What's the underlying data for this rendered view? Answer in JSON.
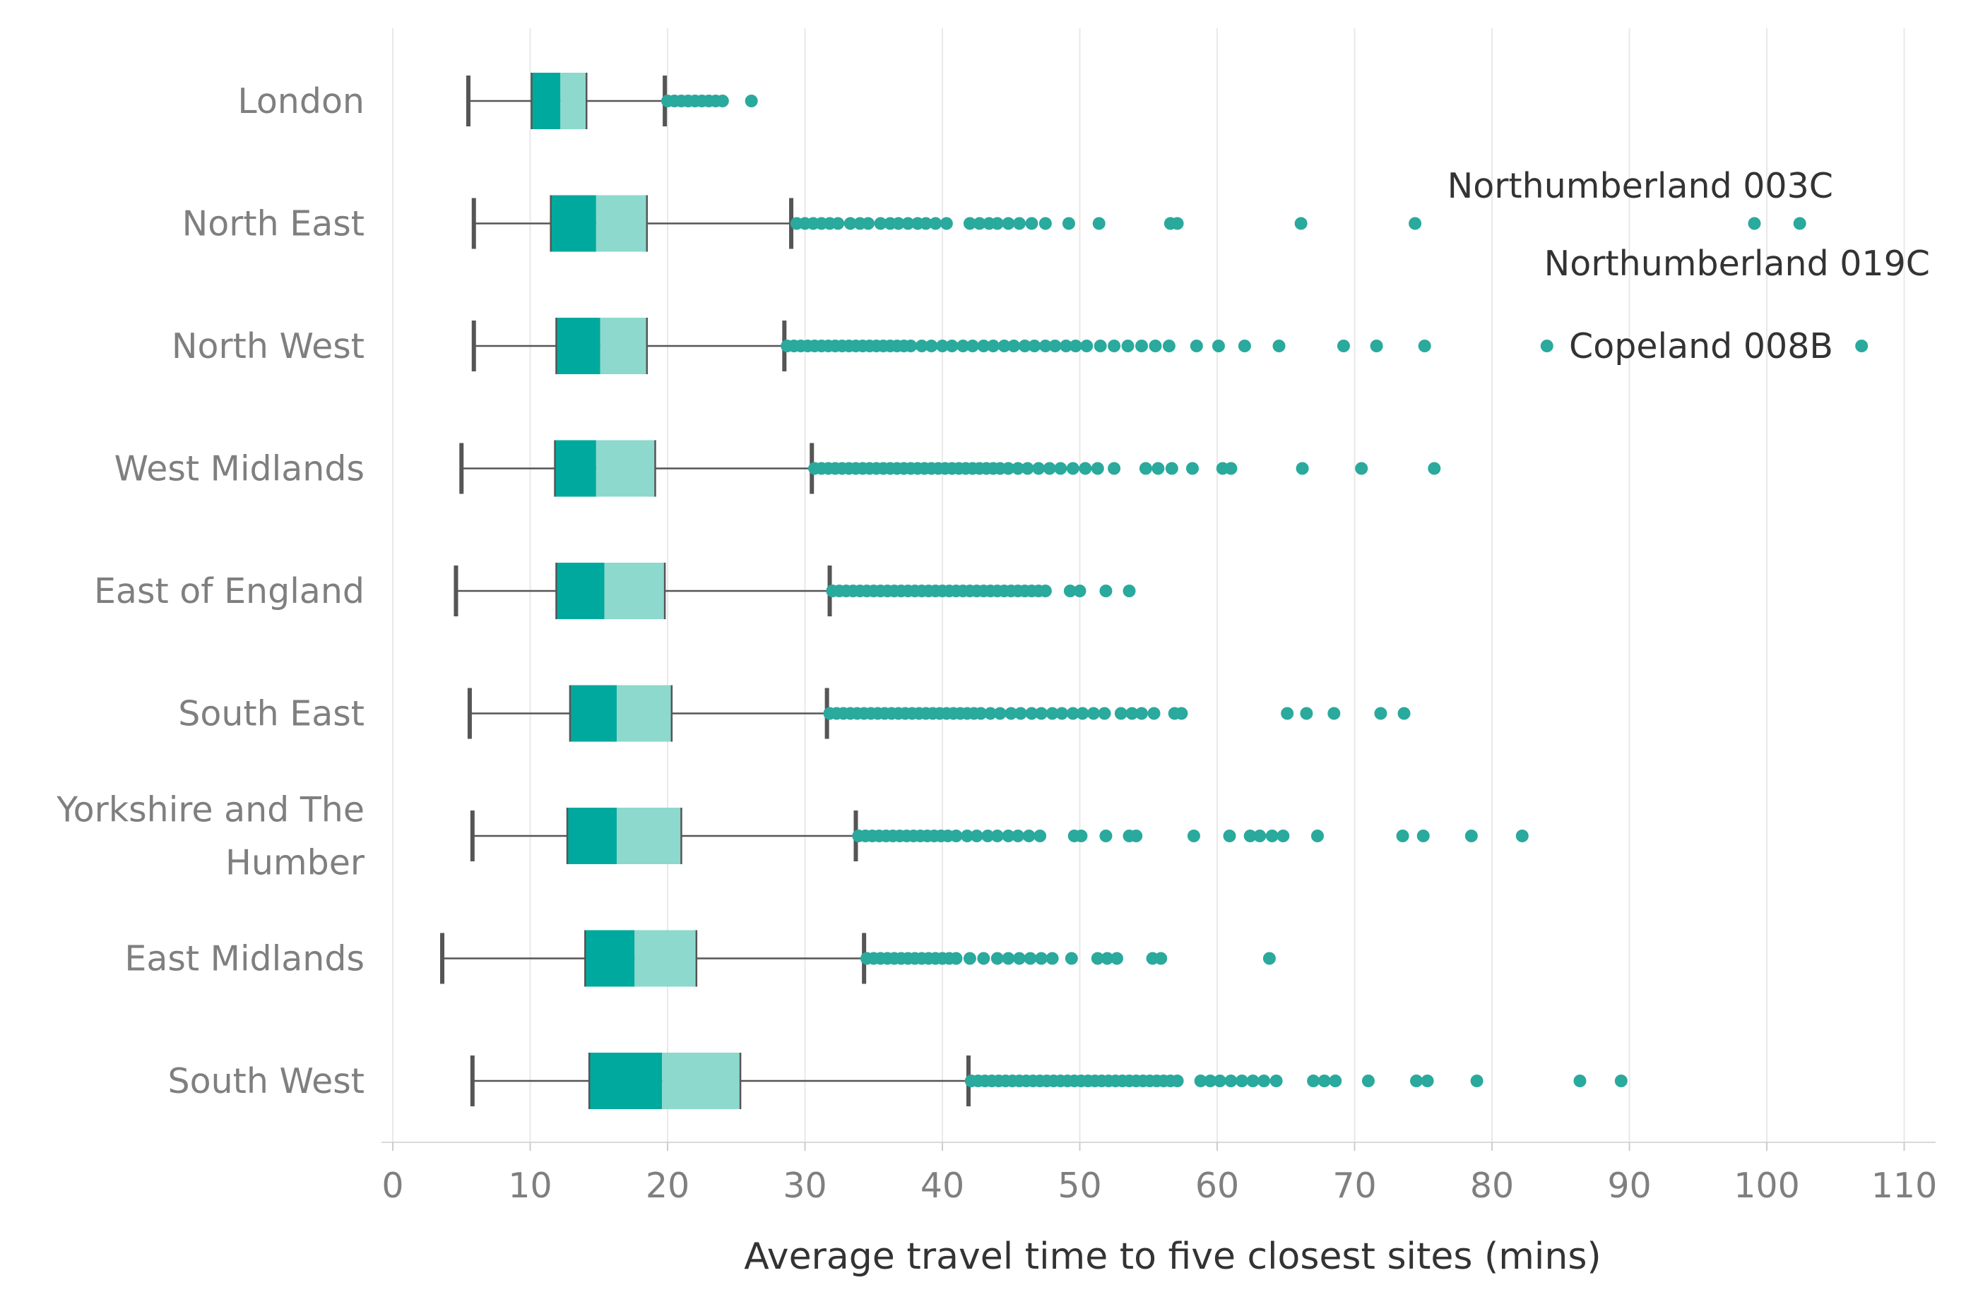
{
  "chart_data": {
    "type": "boxplot",
    "orientation": "horizontal",
    "xlabel": "Average travel time to five closest sites (mins)",
    "xlim": [
      0,
      112
    ],
    "xticks": [
      0,
      10,
      20,
      30,
      40,
      50,
      60,
      70,
      80,
      90,
      100,
      110
    ],
    "colors": {
      "lower_box": "#00a99d",
      "upper_box": "#8dd9cd",
      "outlier": "#2aa99d",
      "whisker": "#555555",
      "grid": "#e8e8e8"
    },
    "series": [
      {
        "name": "London",
        "label_lines": [
          "London"
        ],
        "min": 5.5,
        "q1": 10.1,
        "median": 12.2,
        "q3": 14.1,
        "max": 19.8,
        "outliers": [
          20.0,
          20.5,
          21.0,
          21.5,
          22.0,
          22.5,
          23.0,
          23.5,
          24.0,
          26.1
        ]
      },
      {
        "name": "North East",
        "label_lines": [
          "North East"
        ],
        "min": 5.9,
        "q1": 11.5,
        "median": 14.8,
        "q3": 18.5,
        "max": 29.0,
        "outliers": [
          29.4,
          30.0,
          30.6,
          31.2,
          31.8,
          32.4,
          33.3,
          34.0,
          34.6,
          35.5,
          36.2,
          36.8,
          37.5,
          38.2,
          38.8,
          39.5,
          40.3,
          42.0,
          42.7,
          43.4,
          44.0,
          44.8,
          45.6,
          46.5,
          47.5,
          49.2,
          51.4,
          56.6,
          57.1,
          66.1,
          74.4,
          99.1,
          102.4
        ],
        "annotations": [
          {
            "text": "Northumberland 003C",
            "target": 99.1
          },
          {
            "text": "Northumberland 019C",
            "target": 102.4
          }
        ]
      },
      {
        "name": "North West",
        "label_lines": [
          "North West"
        ],
        "min": 5.9,
        "q1": 11.9,
        "median": 15.1,
        "q3": 18.5,
        "max": 28.5,
        "outliers": [
          28.7,
          29.2,
          29.7,
          30.2,
          30.7,
          31.2,
          31.7,
          32.2,
          32.7,
          33.2,
          33.7,
          34.2,
          34.7,
          35.2,
          35.7,
          36.2,
          36.7,
          37.2,
          37.7,
          38.5,
          39.2,
          40.0,
          40.7,
          41.5,
          42.2,
          43.0,
          43.7,
          44.5,
          45.2,
          46.0,
          46.7,
          47.5,
          48.2,
          49.0,
          49.7,
          50.5,
          51.5,
          52.5,
          53.5,
          54.5,
          55.5,
          56.5,
          58.5,
          60.1,
          62.0,
          64.5,
          69.2,
          71.6,
          75.1,
          84.0,
          106.9
        ],
        "annotations": [
          {
            "text": "Copeland 008B",
            "target": 106.9
          }
        ]
      },
      {
        "name": "West Midlands",
        "label_lines": [
          "West Midlands"
        ],
        "min": 5.0,
        "q1": 11.8,
        "median": 14.8,
        "q3": 19.1,
        "max": 30.5,
        "outliers": [
          30.7,
          31.2,
          31.7,
          32.2,
          32.7,
          33.2,
          33.7,
          34.2,
          34.7,
          35.2,
          35.7,
          36.2,
          36.7,
          37.2,
          37.7,
          38.2,
          38.7,
          39.2,
          39.7,
          40.2,
          40.7,
          41.2,
          41.7,
          42.2,
          42.7,
          43.2,
          43.7,
          44.2,
          44.8,
          45.5,
          46.2,
          47.0,
          47.8,
          48.6,
          49.5,
          50.4,
          51.3,
          52.5,
          54.8,
          55.7,
          56.7,
          58.2,
          60.4,
          61.0,
          66.2,
          70.5,
          75.8
        ]
      },
      {
        "name": "East of England",
        "label_lines": [
          "East of England"
        ],
        "min": 4.6,
        "q1": 11.9,
        "median": 15.4,
        "q3": 19.8,
        "max": 31.8,
        "outliers": [
          32.0,
          32.5,
          33.0,
          33.5,
          34.0,
          34.5,
          35.0,
          35.5,
          36.0,
          36.5,
          37.0,
          37.5,
          38.0,
          38.5,
          39.0,
          39.5,
          40.0,
          40.5,
          41.0,
          41.5,
          42.0,
          42.5,
          43.0,
          43.5,
          44.0,
          44.5,
          45.0,
          45.5,
          46.0,
          46.5,
          47.0,
          47.5,
          49.3,
          50.0,
          51.9,
          53.6
        ]
      },
      {
        "name": "South East",
        "label_lines": [
          "South East"
        ],
        "min": 5.6,
        "q1": 12.9,
        "median": 16.3,
        "q3": 20.3,
        "max": 31.6,
        "outliers": [
          31.8,
          32.3,
          32.8,
          33.3,
          33.8,
          34.3,
          34.8,
          35.3,
          35.8,
          36.3,
          36.8,
          37.3,
          37.8,
          38.3,
          38.8,
          39.3,
          39.8,
          40.3,
          40.8,
          41.3,
          41.8,
          42.3,
          42.8,
          43.5,
          44.2,
          45.0,
          45.7,
          46.5,
          47.2,
          48.0,
          48.7,
          49.5,
          50.2,
          51.0,
          51.8,
          53.0,
          53.8,
          54.5,
          55.4,
          56.9,
          57.4,
          65.1,
          66.5,
          68.5,
          71.9,
          73.6
        ]
      },
      {
        "name": "Yorkshire and The Humber",
        "label_lines": [
          "Yorkshire and The",
          "Humber"
        ],
        "min": 5.8,
        "q1": 12.7,
        "median": 16.3,
        "q3": 21.0,
        "max": 33.7,
        "outliers": [
          33.9,
          34.4,
          34.9,
          35.4,
          35.9,
          36.4,
          36.9,
          37.4,
          37.9,
          38.4,
          38.9,
          39.4,
          39.9,
          40.4,
          41.0,
          41.8,
          42.5,
          43.3,
          44.0,
          44.8,
          45.5,
          46.3,
          47.1,
          49.6,
          50.1,
          51.9,
          53.6,
          54.1,
          58.3,
          60.9,
          62.4,
          63.1,
          64.0,
          64.8,
          67.3,
          73.5,
          75.0,
          78.5,
          82.2
        ]
      },
      {
        "name": "East Midlands",
        "label_lines": [
          "East Midlands"
        ],
        "min": 3.6,
        "q1": 14.0,
        "median": 17.6,
        "q3": 22.1,
        "max": 34.3,
        "outliers": [
          34.5,
          35.0,
          35.5,
          36.0,
          36.5,
          37.0,
          37.5,
          38.0,
          38.5,
          39.0,
          39.5,
          40.0,
          40.5,
          41.0,
          42.0,
          43.0,
          44.0,
          44.8,
          45.6,
          46.4,
          47.2,
          48.0,
          49.4,
          51.3,
          52.0,
          52.7,
          55.3,
          55.9,
          63.8
        ]
      },
      {
        "name": "South West",
        "label_lines": [
          "South West"
        ],
        "min": 5.8,
        "q1": 14.3,
        "median": 19.6,
        "q3": 25.3,
        "max": 41.9,
        "outliers": [
          42.1,
          42.6,
          43.1,
          43.6,
          44.1,
          44.6,
          45.1,
          45.6,
          46.1,
          46.6,
          47.1,
          47.6,
          48.1,
          48.6,
          49.1,
          49.6,
          50.1,
          50.6,
          51.1,
          51.6,
          52.1,
          52.6,
          53.1,
          53.6,
          54.1,
          54.6,
          55.1,
          55.6,
          56.1,
          56.6,
          57.1,
          58.8,
          59.5,
          60.2,
          61.0,
          61.8,
          62.6,
          63.4,
          64.3,
          67.0,
          67.8,
          68.6,
          71.0,
          74.5,
          75.3,
          78.9,
          86.4,
          89.4
        ]
      }
    ]
  }
}
